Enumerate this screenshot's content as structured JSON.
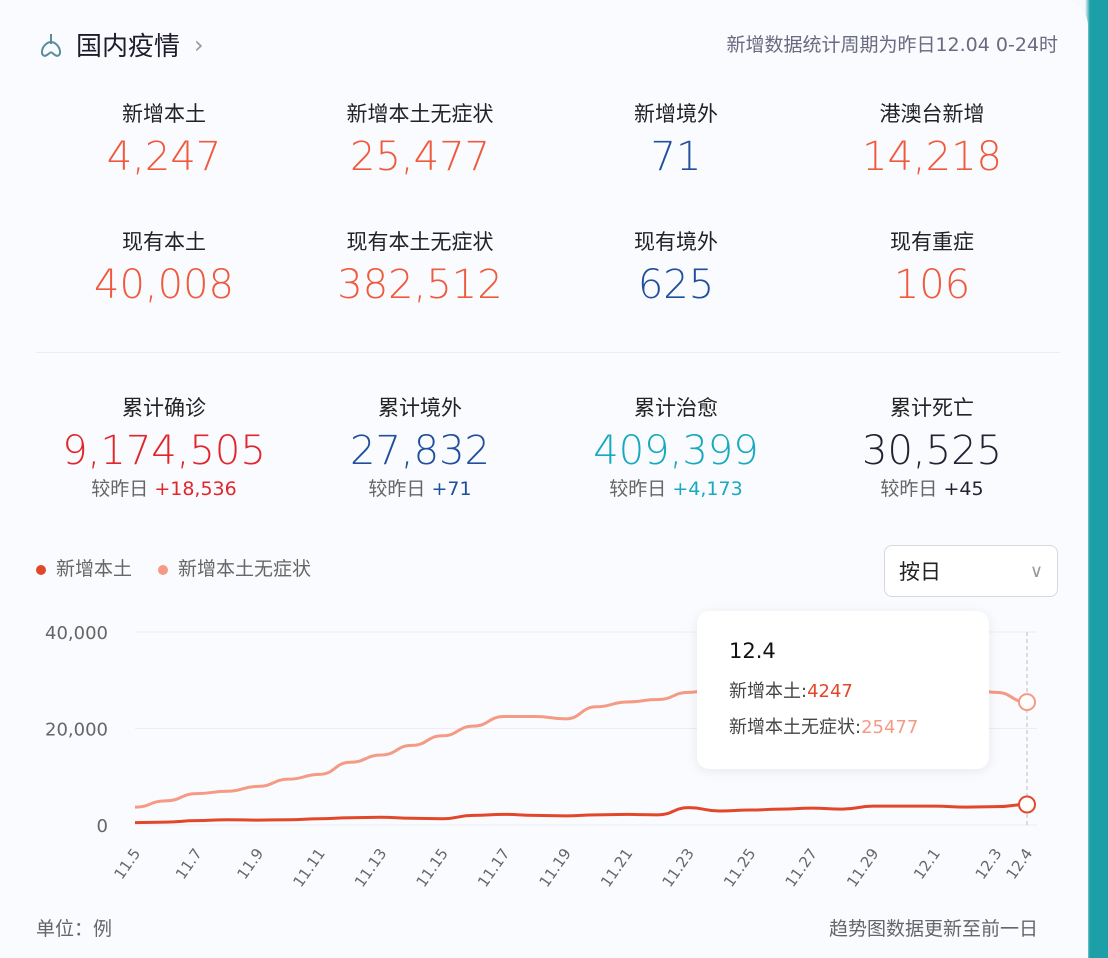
{
  "header": {
    "title": "国内疫情",
    "period": "新增数据统计周期为昨日12.04 0-24时",
    "icon": "lungs-icon"
  },
  "colors": {
    "red": "#ef5a3d",
    "blue": "#1f4f9d",
    "teal": "#18a9bf",
    "dark": "#222233",
    "deep_red": "#e0262b",
    "series_confirmed": "#e2472a",
    "series_asym": "#f59a84"
  },
  "row1": [
    {
      "label": "新增本土",
      "value": "4,247",
      "color": "#ef5a3d"
    },
    {
      "label": "新增本土无症状",
      "value": "25,477",
      "color": "#ef5a3d"
    },
    {
      "label": "新增境外",
      "value": "71",
      "color": "#1f4f9d"
    },
    {
      "label": "港澳台新增",
      "value": "14,218",
      "color": "#ef5a3d"
    }
  ],
  "row2": [
    {
      "label": "现有本土",
      "value": "40,008",
      "color": "#ef5a3d"
    },
    {
      "label": "现有本土无症状",
      "value": "382,512",
      "color": "#ef5a3d"
    },
    {
      "label": "现有境外",
      "value": "625",
      "color": "#1f4f9d"
    },
    {
      "label": "现有重症",
      "value": "106",
      "color": "#ef5a3d"
    }
  ],
  "row3": [
    {
      "label": "累计确诊",
      "value": "9,174,505",
      "cmp_label": "较昨日",
      "cmp": "+18,536",
      "color": "#e0262b"
    },
    {
      "label": "累计境外",
      "value": "27,832",
      "cmp_label": "较昨日",
      "cmp": "+71",
      "color": "#1f4f9d"
    },
    {
      "label": "累计治愈",
      "value": "409,399",
      "cmp_label": "较昨日",
      "cmp": "+4,173",
      "color": "#18a9bf"
    },
    {
      "label": "累计死亡",
      "value": "30,525",
      "cmp_label": "较昨日",
      "cmp": "+45",
      "color": "#222233"
    }
  ],
  "select": {
    "value": "按日"
  },
  "tooltip": {
    "date": "12.4",
    "l1": "新增本土:",
    "v1": "4247",
    "l2": "新增本土无症状:",
    "v2": "25477"
  },
  "footer": {
    "unit": "单位：例",
    "note": "趋势图数据更新至前一日"
  },
  "chart_data": {
    "type": "line",
    "ylim": [
      0,
      40000
    ],
    "yticks": [
      "0",
      "20,000",
      "40,000"
    ],
    "ytick_values": [
      0,
      20000,
      40000
    ],
    "grid": true,
    "legend_placement": "top-left",
    "x": [
      "11.5",
      "11.6",
      "11.7",
      "11.8",
      "11.9",
      "11.10",
      "11.11",
      "11.12",
      "11.13",
      "11.14",
      "11.15",
      "11.16",
      "11.17",
      "11.18",
      "11.19",
      "11.20",
      "11.21",
      "11.22",
      "11.23",
      "11.24",
      "11.25",
      "11.26",
      "11.27",
      "11.28",
      "11.29",
      "11.30",
      "12.1",
      "12.2",
      "12.3",
      "12.4"
    ],
    "xticks": [
      "11.5",
      "11.7",
      "11.9",
      "11.11",
      "11.13",
      "11.15",
      "11.17",
      "11.19",
      "11.21",
      "11.23",
      "11.25",
      "11.27",
      "11.29",
      "12.1",
      "12.3",
      "12.4"
    ],
    "series": [
      {
        "name": "新增本土",
        "color": "#e2472a",
        "values": [
          500,
          600,
          900,
          1100,
          1000,
          1100,
          1300,
          1500,
          1600,
          1400,
          1300,
          2000,
          2200,
          2000,
          1900,
          2100,
          2200,
          2100,
          3600,
          2900,
          3100,
          3300,
          3500,
          3300,
          3900,
          3900,
          3900,
          3700,
          3800,
          4247
        ]
      },
      {
        "name": "新增本土无症状",
        "color": "#f59a84",
        "values": [
          3700,
          5000,
          6500,
          7000,
          8000,
          9500,
          10500,
          13000,
          14500,
          16500,
          18500,
          20500,
          22500,
          22500,
          22000,
          24500,
          25500,
          26000,
          27500,
          28500,
          29000,
          29500,
          30000,
          30500,
          30500,
          30000,
          29500,
          28500,
          27500,
          25477
        ]
      }
    ]
  }
}
